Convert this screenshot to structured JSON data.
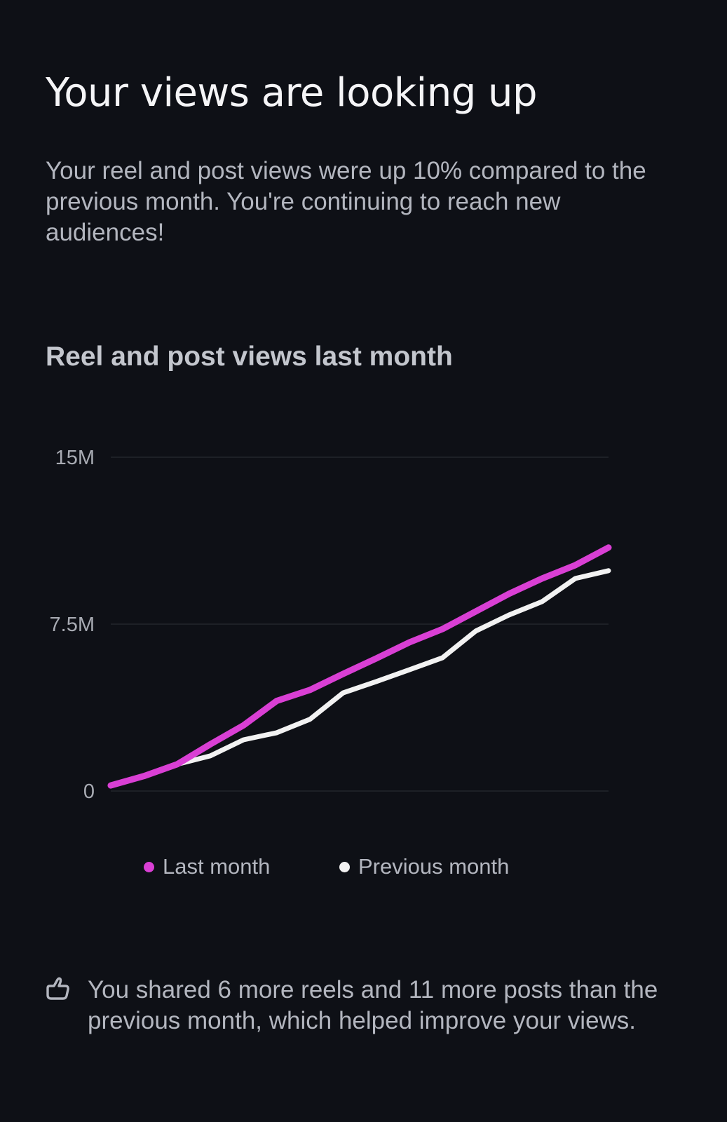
{
  "header": {
    "title": "Your views are looking up",
    "description": "Your reel and post views were up 10% compared to the previous month. You're continuing to reach new audiences!"
  },
  "chart_data": {
    "type": "line",
    "title": "Reel and post views last month",
    "xlabel": "",
    "ylabel": "",
    "ylim": [
      0,
      15000000
    ],
    "yticks": [
      {
        "value": 0,
        "label": "0"
      },
      {
        "value": 7500000,
        "label": "7.5M"
      },
      {
        "value": 15000000,
        "label": "15M"
      }
    ],
    "grid": true,
    "legend_position": "bottom",
    "x": [
      1,
      2,
      3,
      4,
      5,
      6,
      7,
      8,
      9,
      10,
      11,
      12,
      13,
      14,
      15,
      16
    ],
    "series": [
      {
        "name": "Last month",
        "color": "#d93fd4",
        "values": [
          250000,
          670000,
          1200000,
          2100000,
          2950000,
          4050000,
          4540000,
          5260000,
          5960000,
          6680000,
          7280000,
          8070000,
          8860000,
          9550000,
          10150000,
          10940000
        ]
      },
      {
        "name": "Previous month",
        "color": "#f2f2f2",
        "values": [
          250000,
          670000,
          1200000,
          1580000,
          2300000,
          2620000,
          3220000,
          4410000,
          4920000,
          5450000,
          5990000,
          7190000,
          7910000,
          8510000,
          9550000,
          9900000
        ]
      }
    ]
  },
  "footer": {
    "icon": "thumbs-up-icon",
    "text": "You shared 6 more reels and 11 more posts than the previous month, which helped improve your views."
  }
}
